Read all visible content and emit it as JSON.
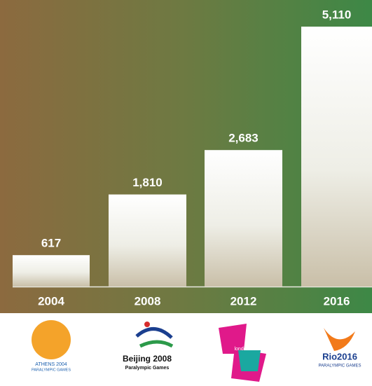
{
  "chart_data": {
    "type": "bar",
    "categories": [
      "2004",
      "2008",
      "2012",
      "2016"
    ],
    "values": [
      617,
      1810,
      2683,
      5110
    ],
    "value_labels": [
      "617",
      "1,810",
      "2,683",
      "5,110"
    ],
    "logos": [
      {
        "lines": [
          "ATHENS 2004",
          "PARALYMPIC GAMES"
        ]
      },
      {
        "lines": [
          "Beijing 2008",
          "Paralympic Games"
        ]
      },
      {
        "lines": [
          "london"
        ]
      },
      {
        "lines": [
          "Rio2016",
          "PARALYMPIC GAMES"
        ]
      }
    ]
  }
}
